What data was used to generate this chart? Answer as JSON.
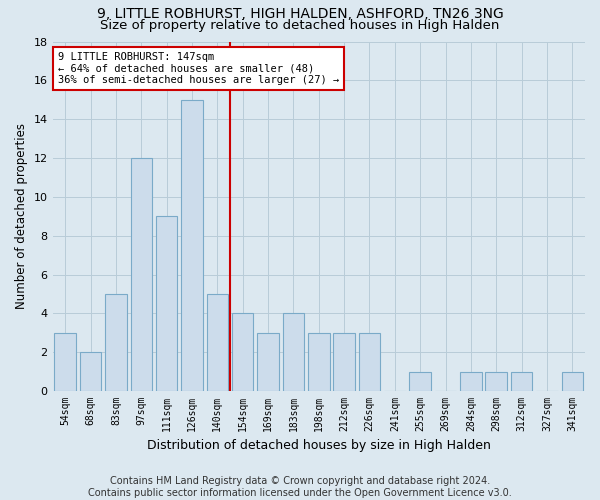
{
  "title1": "9, LITTLE ROBHURST, HIGH HALDEN, ASHFORD, TN26 3NG",
  "title2": "Size of property relative to detached houses in High Halden",
  "xlabel": "Distribution of detached houses by size in High Halden",
  "ylabel": "Number of detached properties",
  "footer1": "Contains HM Land Registry data © Crown copyright and database right 2024.",
  "footer2": "Contains public sector information licensed under the Open Government Licence v3.0.",
  "bins": [
    "54sqm",
    "68sqm",
    "83sqm",
    "97sqm",
    "111sqm",
    "126sqm",
    "140sqm",
    "154sqm",
    "169sqm",
    "183sqm",
    "198sqm",
    "212sqm",
    "226sqm",
    "241sqm",
    "255sqm",
    "269sqm",
    "284sqm",
    "298sqm",
    "312sqm",
    "327sqm",
    "341sqm"
  ],
  "bar_values": [
    3,
    2,
    5,
    12,
    9,
    15,
    5,
    4,
    3,
    4,
    3,
    3,
    3,
    0,
    1,
    0,
    1,
    1,
    1,
    0,
    1
  ],
  "bar_color": "#ccdceb",
  "bar_edge_color": "#7aaac8",
  "vline_x_index": 6,
  "vline_color": "#cc0000",
  "annotation_line1": "9 LITTLE ROBHURST: 147sqm",
  "annotation_line2": "← 64% of detached houses are smaller (48)",
  "annotation_line3": "36% of semi-detached houses are larger (27) →",
  "annotation_box_color": "white",
  "annotation_box_edge": "#cc0000",
  "ylim": [
    0,
    18
  ],
  "yticks": [
    0,
    2,
    4,
    6,
    8,
    10,
    12,
    14,
    16,
    18
  ],
  "background_color": "#dce8f0",
  "plot_background_color": "#dce8f0",
  "grid_color": "#b8ccd8",
  "title_fontsize": 10,
  "subtitle_fontsize": 9.5,
  "tick_fontsize": 7,
  "ylabel_fontsize": 8.5,
  "xlabel_fontsize": 9,
  "footer_fontsize": 7,
  "annot_fontsize": 7.5
}
